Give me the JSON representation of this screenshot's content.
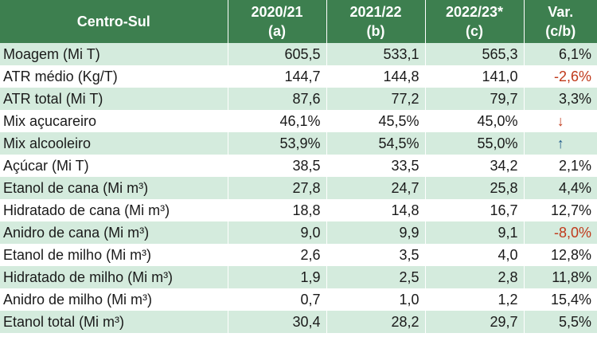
{
  "header": {
    "region": "Centro-Sul",
    "col1": {
      "line1": "2020/21",
      "line2": "(a)"
    },
    "col2": {
      "line1": "2021/22",
      "line2": "(b)"
    },
    "col3": {
      "line1": "2022/23*",
      "line2": "(c)"
    },
    "col4": {
      "line1": "Var.",
      "line2": "(c/b)"
    }
  },
  "rows": [
    {
      "label": "Moagem (Mi T)",
      "a": "605,5",
      "b": "533,1",
      "c": "565,3",
      "var": "6,1%",
      "var_kind": "pos"
    },
    {
      "label": "ATR médio (Kg/T)",
      "a": "144,7",
      "b": "144,8",
      "c": "141,0",
      "var": "-2,6%",
      "var_kind": "neg"
    },
    {
      "label": "ATR total (Mi T)",
      "a": "87,6",
      "b": "77,2",
      "c": "79,7",
      "var": "3,3%",
      "var_kind": "pos"
    },
    {
      "label": "Mix açucareiro",
      "a": "46,1%",
      "b": "45,5%",
      "c": "45,0%",
      "var": "↓",
      "var_kind": "arrow-down"
    },
    {
      "label": "Mix alcooleiro",
      "a": "53,9%",
      "b": "54,5%",
      "c": "55,0%",
      "var": "↑",
      "var_kind": "arrow-up"
    },
    {
      "label": "Açúcar (Mi T)",
      "a": "38,5",
      "b": "33,5",
      "c": "34,2",
      "var": "2,1%",
      "var_kind": "pos"
    },
    {
      "label": "Etanol de cana (Mi m³)",
      "a": "27,8",
      "b": "24,7",
      "c": "25,8",
      "var": "4,4%",
      "var_kind": "pos"
    },
    {
      "label": "Hidratado de cana (Mi m³)",
      "a": "18,8",
      "b": "14,8",
      "c": "16,7",
      "var": "12,7%",
      "var_kind": "pos"
    },
    {
      "label": "Anidro de cana (Mi m³)",
      "a": "9,0",
      "b": "9,9",
      "c": "9,1",
      "var": "-8,0%",
      "var_kind": "neg"
    },
    {
      "label": "Etanol de milho (Mi m³)",
      "a": "2,6",
      "b": "3,5",
      "c": "4,0",
      "var": "12,8%",
      "var_kind": "pos"
    },
    {
      "label": "Hidratado de milho (Mi m³)",
      "a": "1,9",
      "b": "2,5",
      "c": "2,8",
      "var": "11,8%",
      "var_kind": "pos"
    },
    {
      "label": "Anidro de milho (Mi m³)",
      "a": "0,7",
      "b": "1,0",
      "c": "1,2",
      "var": "15,4%",
      "var_kind": "pos"
    },
    {
      "label": "Etanol total (Mi m³)",
      "a": "30,4",
      "b": "28,2",
      "c": "29,7",
      "var": "5,5%",
      "var_kind": "pos"
    }
  ],
  "colors": {
    "header_bg": "#3d7f4f",
    "row_shade": "#d4ebdd",
    "negative": "#c0391b",
    "arrow_up": "#1f5a8a"
  }
}
